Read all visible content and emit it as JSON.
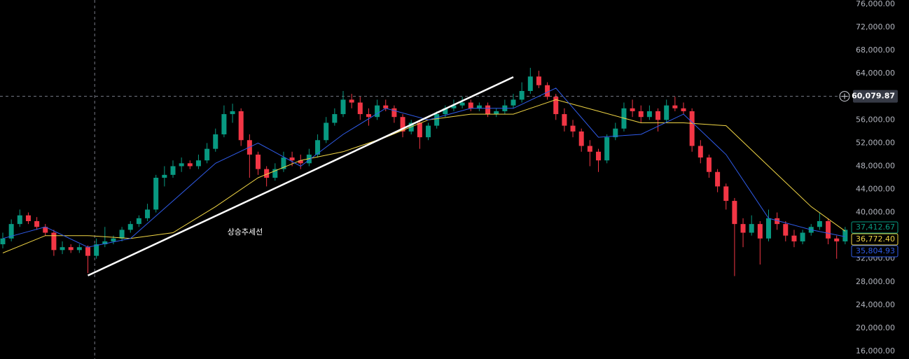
{
  "chart_data": {
    "type": "candlestick",
    "up_color": "#089981",
    "down_color": "#f23645",
    "ylim": [
      14667,
      76727
    ],
    "yticks": [
      {
        "value": 16000,
        "label": "16,000.00"
      },
      {
        "value": 20000,
        "label": "20,000.00"
      },
      {
        "value": 24000,
        "label": "24,000.00"
      },
      {
        "value": 28000,
        "label": "28,000.00"
      },
      {
        "value": 32000,
        "label": "32,000.00"
      },
      {
        "value": 36000,
        "label": "36,000.00"
      },
      {
        "value": 40000,
        "label": "40,000.00"
      },
      {
        "value": 44000,
        "label": "44,000.00"
      },
      {
        "value": 48000,
        "label": "48,000.00"
      },
      {
        "value": 52000,
        "label": "52,000.00"
      },
      {
        "value": 56000,
        "label": "56,000.00"
      },
      {
        "value": 60000,
        "label": "60,000.00"
      },
      {
        "value": 64000,
        "label": "64,000.00"
      },
      {
        "value": 68000,
        "label": "68,000.00"
      },
      {
        "value": 72000,
        "label": "72,000.00"
      },
      {
        "value": 76000,
        "label": "76,000.00"
      }
    ],
    "grid": false,
    "ohlc": [
      [
        34500,
        36500,
        33800,
        35500
      ],
      [
        35500,
        38800,
        35000,
        38000
      ],
      [
        38000,
        40500,
        37500,
        39500
      ],
      [
        39500,
        40000,
        38000,
        38500
      ],
      [
        38500,
        39200,
        37000,
        37500
      ],
      [
        37500,
        38000,
        36000,
        36500
      ],
      [
        36500,
        37000,
        32500,
        33500
      ],
      [
        33500,
        35000,
        32800,
        34000
      ],
      [
        34000,
        34500,
        33000,
        33500
      ],
      [
        33500,
        34500,
        33000,
        34000
      ],
      [
        34000,
        34300,
        29500,
        32500
      ],
      [
        32500,
        35500,
        32000,
        34500
      ],
      [
        34500,
        37500,
        34000,
        35000
      ],
      [
        35000,
        36000,
        34500,
        35500
      ],
      [
        35500,
        37500,
        35000,
        37000
      ],
      [
        37000,
        38500,
        36500,
        38000
      ],
      [
        38000,
        39500,
        37500,
        39000
      ],
      [
        39000,
        41500,
        38500,
        40500
      ],
      [
        40500,
        46500,
        40000,
        46000
      ],
      [
        46000,
        48000,
        44500,
        46500
      ],
      [
        46500,
        49000,
        46000,
        48000
      ],
      [
        48000,
        49500,
        47000,
        48500
      ],
      [
        48500,
        49000,
        47500,
        48000
      ],
      [
        48000,
        50000,
        47500,
        49000
      ],
      [
        49000,
        52000,
        48500,
        51000
      ],
      [
        51000,
        54500,
        50500,
        53500
      ],
      [
        53500,
        58500,
        53000,
        57000
      ],
      [
        57000,
        58800,
        55500,
        57500
      ],
      [
        57500,
        58000,
        51500,
        52500
      ],
      [
        52500,
        53500,
        46000,
        50000
      ],
      [
        50000,
        50500,
        46500,
        47500
      ],
      [
        47500,
        48000,
        44500,
        46000
      ],
      [
        46000,
        48500,
        45500,
        47500
      ],
      [
        47500,
        50500,
        47000,
        49500
      ],
      [
        49500,
        50500,
        48000,
        49000
      ],
      [
        49000,
        50000,
        47500,
        48500
      ],
      [
        48500,
        51000,
        48000,
        50000
      ],
      [
        50000,
        53500,
        49500,
        52500
      ],
      [
        52500,
        56500,
        52000,
        55500
      ],
      [
        55500,
        58000,
        55000,
        57000
      ],
      [
        57000,
        61000,
        56500,
        59500
      ],
      [
        59500,
        60500,
        58000,
        59000
      ],
      [
        59000,
        60000,
        56000,
        57000
      ],
      [
        57000,
        58000,
        55000,
        56500
      ],
      [
        56500,
        59500,
        56000,
        58500
      ],
      [
        58500,
        59500,
        57500,
        58000
      ],
      [
        58000,
        58500,
        55500,
        56500
      ],
      [
        56500,
        57000,
        53000,
        54000
      ],
      [
        54000,
        56000,
        53500,
        55500
      ],
      [
        55500,
        56000,
        51000,
        53000
      ],
      [
        53000,
        55500,
        52500,
        55000
      ],
      [
        55000,
        57500,
        54500,
        57000
      ],
      [
        57000,
        58500,
        56500,
        58000
      ],
      [
        58000,
        59500,
        57500,
        58500
      ],
      [
        58500,
        60000,
        58000,
        59000
      ],
      [
        59000,
        59500,
        57500,
        58000
      ],
      [
        58000,
        59000,
        57500,
        58500
      ],
      [
        58500,
        59000,
        56500,
        57000
      ],
      [
        57000,
        58000,
        56500,
        57500
      ],
      [
        57500,
        59500,
        57000,
        58500
      ],
      [
        58500,
        60500,
        58000,
        59500
      ],
      [
        59500,
        62500,
        59000,
        61000
      ],
      [
        61000,
        65000,
        60500,
        63500
      ],
      [
        63500,
        64500,
        61500,
        62000
      ],
      [
        62000,
        62500,
        59500,
        60000
      ],
      [
        60000,
        60500,
        56000,
        57000
      ],
      [
        57000,
        58000,
        54000,
        55000
      ],
      [
        55000,
        56000,
        53000,
        54000
      ],
      [
        54000,
        54500,
        50500,
        51500
      ],
      [
        51500,
        52500,
        48000,
        50500
      ],
      [
        50500,
        51000,
        47000,
        49000
      ],
      [
        49000,
        53500,
        48500,
        53000
      ],
      [
        53000,
        55500,
        52500,
        54500
      ],
      [
        54500,
        59000,
        54000,
        58000
      ],
      [
        58000,
        59500,
        56500,
        57500
      ],
      [
        57500,
        58500,
        55500,
        56500
      ],
      [
        56500,
        58500,
        56000,
        57500
      ],
      [
        57500,
        58000,
        54000,
        56000
      ],
      [
        56000,
        59500,
        55500,
        58500
      ],
      [
        58500,
        60000,
        57500,
        58000
      ],
      [
        58000,
        59000,
        57000,
        57500
      ],
      [
        57500,
        58000,
        50500,
        51500
      ],
      [
        51500,
        52500,
        48500,
        49500
      ],
      [
        49500,
        50000,
        46000,
        47000
      ],
      [
        47000,
        47500,
        43500,
        44500
      ],
      [
        44500,
        45000,
        40500,
        42000
      ],
      [
        42000,
        42500,
        29000,
        38000
      ],
      [
        38000,
        39000,
        34000,
        36500
      ],
      [
        36500,
        39500,
        36000,
        38000
      ],
      [
        38000,
        38500,
        31000,
        35500
      ],
      [
        35500,
        40500,
        35000,
        39000
      ],
      [
        39000,
        40000,
        37000,
        38000
      ],
      [
        38000,
        38500,
        35000,
        36000
      ],
      [
        36000,
        37000,
        34000,
        35000
      ],
      [
        35000,
        37000,
        34500,
        36500
      ],
      [
        36500,
        38000,
        36000,
        37500
      ],
      [
        37500,
        40000,
        37000,
        38500
      ],
      [
        38500,
        39000,
        34500,
        35500
      ],
      [
        35500,
        36000,
        32000,
        35000
      ],
      [
        35000,
        37500,
        34500,
        37000
      ]
    ],
    "lines": [
      {
        "color": "#f0d545",
        "x": [
          0,
          5,
          10,
          15,
          20,
          25,
          30,
          35,
          40,
          45,
          50,
          55,
          60,
          65,
          70,
          75,
          80,
          85,
          90,
          95,
          99
        ],
        "values": [
          33000,
          36000,
          36000,
          35500,
          36500,
          41000,
          46000,
          49000,
          50500,
          53000,
          56000,
          57000,
          57000,
          59500,
          57500,
          55500,
          55500,
          55000,
          48000,
          41000,
          36772
        ]
      },
      {
        "color": "#2f5be8",
        "x": [
          0,
          5,
          10,
          15,
          20,
          25,
          30,
          35,
          40,
          45,
          50,
          55,
          60,
          65,
          70,
          75,
          80,
          85,
          90,
          95,
          99
        ],
        "values": [
          35500,
          37500,
          34000,
          35500,
          42000,
          48500,
          52000,
          48000,
          53500,
          58000,
          56000,
          58000,
          58000,
          61500,
          53000,
          53500,
          57000,
          50000,
          39000,
          37000,
          35800
        ]
      }
    ],
    "trendline": {
      "from": [
        10,
        29100
      ],
      "to": [
        60,
        63400
      ],
      "color": "#ffffff"
    },
    "annotation": "상승추세선",
    "crosshair": {
      "index": 10.8,
      "value": 60079.87,
      "label": "60,079.87"
    },
    "price_labels": [
      {
        "value": 37412.67,
        "label": "37,412.67",
        "color": "#089981"
      },
      {
        "value": 36772.4,
        "label": "36,772.40",
        "color": "#f0d545"
      },
      {
        "value": 35804.93,
        "label": "35,804.93",
        "color": "#2f5be8"
      }
    ]
  }
}
